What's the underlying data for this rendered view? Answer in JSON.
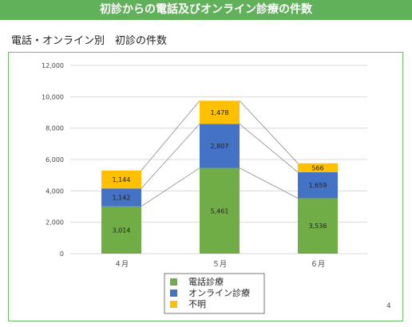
{
  "header": {
    "banner_title": "初診からの電話及びオンライン診療の件数"
  },
  "slide": {
    "subtitle": "電話・オンライン別　初診の件数",
    "page_number": "4"
  },
  "colors": {
    "banner": "#61b05a",
    "frame": "#6dbf67"
  },
  "chart_data": {
    "type": "bar",
    "stacked": true,
    "title": "",
    "xlabel": "",
    "ylabel": "",
    "categories": [
      "４月",
      "５月",
      "６月"
    ],
    "series": [
      {
        "name": "電話診療",
        "values": [
          3014,
          5461,
          3536
        ],
        "labels": [
          "3,014",
          "5,461",
          "3,536"
        ],
        "color": "#70ad47"
      },
      {
        "name": "オンライン診療",
        "values": [
          1142,
          2807,
          1659
        ],
        "labels": [
          "1,142",
          "2,807",
          "1,659"
        ],
        "color": "#4472c4"
      },
      {
        "name": "不明",
        "values": [
          1144,
          1478,
          566
        ],
        "labels": [
          "1,144",
          "1,478",
          "566"
        ],
        "color": "#ffc000"
      }
    ],
    "ylim": [
      0,
      12000
    ],
    "yticks": [
      0,
      2000,
      4000,
      6000,
      8000,
      10000,
      12000
    ],
    "ytick_labels": [
      "0",
      "2,000",
      "4,000",
      "6,000",
      "8,000",
      "10,000",
      "12,000"
    ],
    "grid": true,
    "series_lines": true,
    "legend_position": "bottom"
  }
}
